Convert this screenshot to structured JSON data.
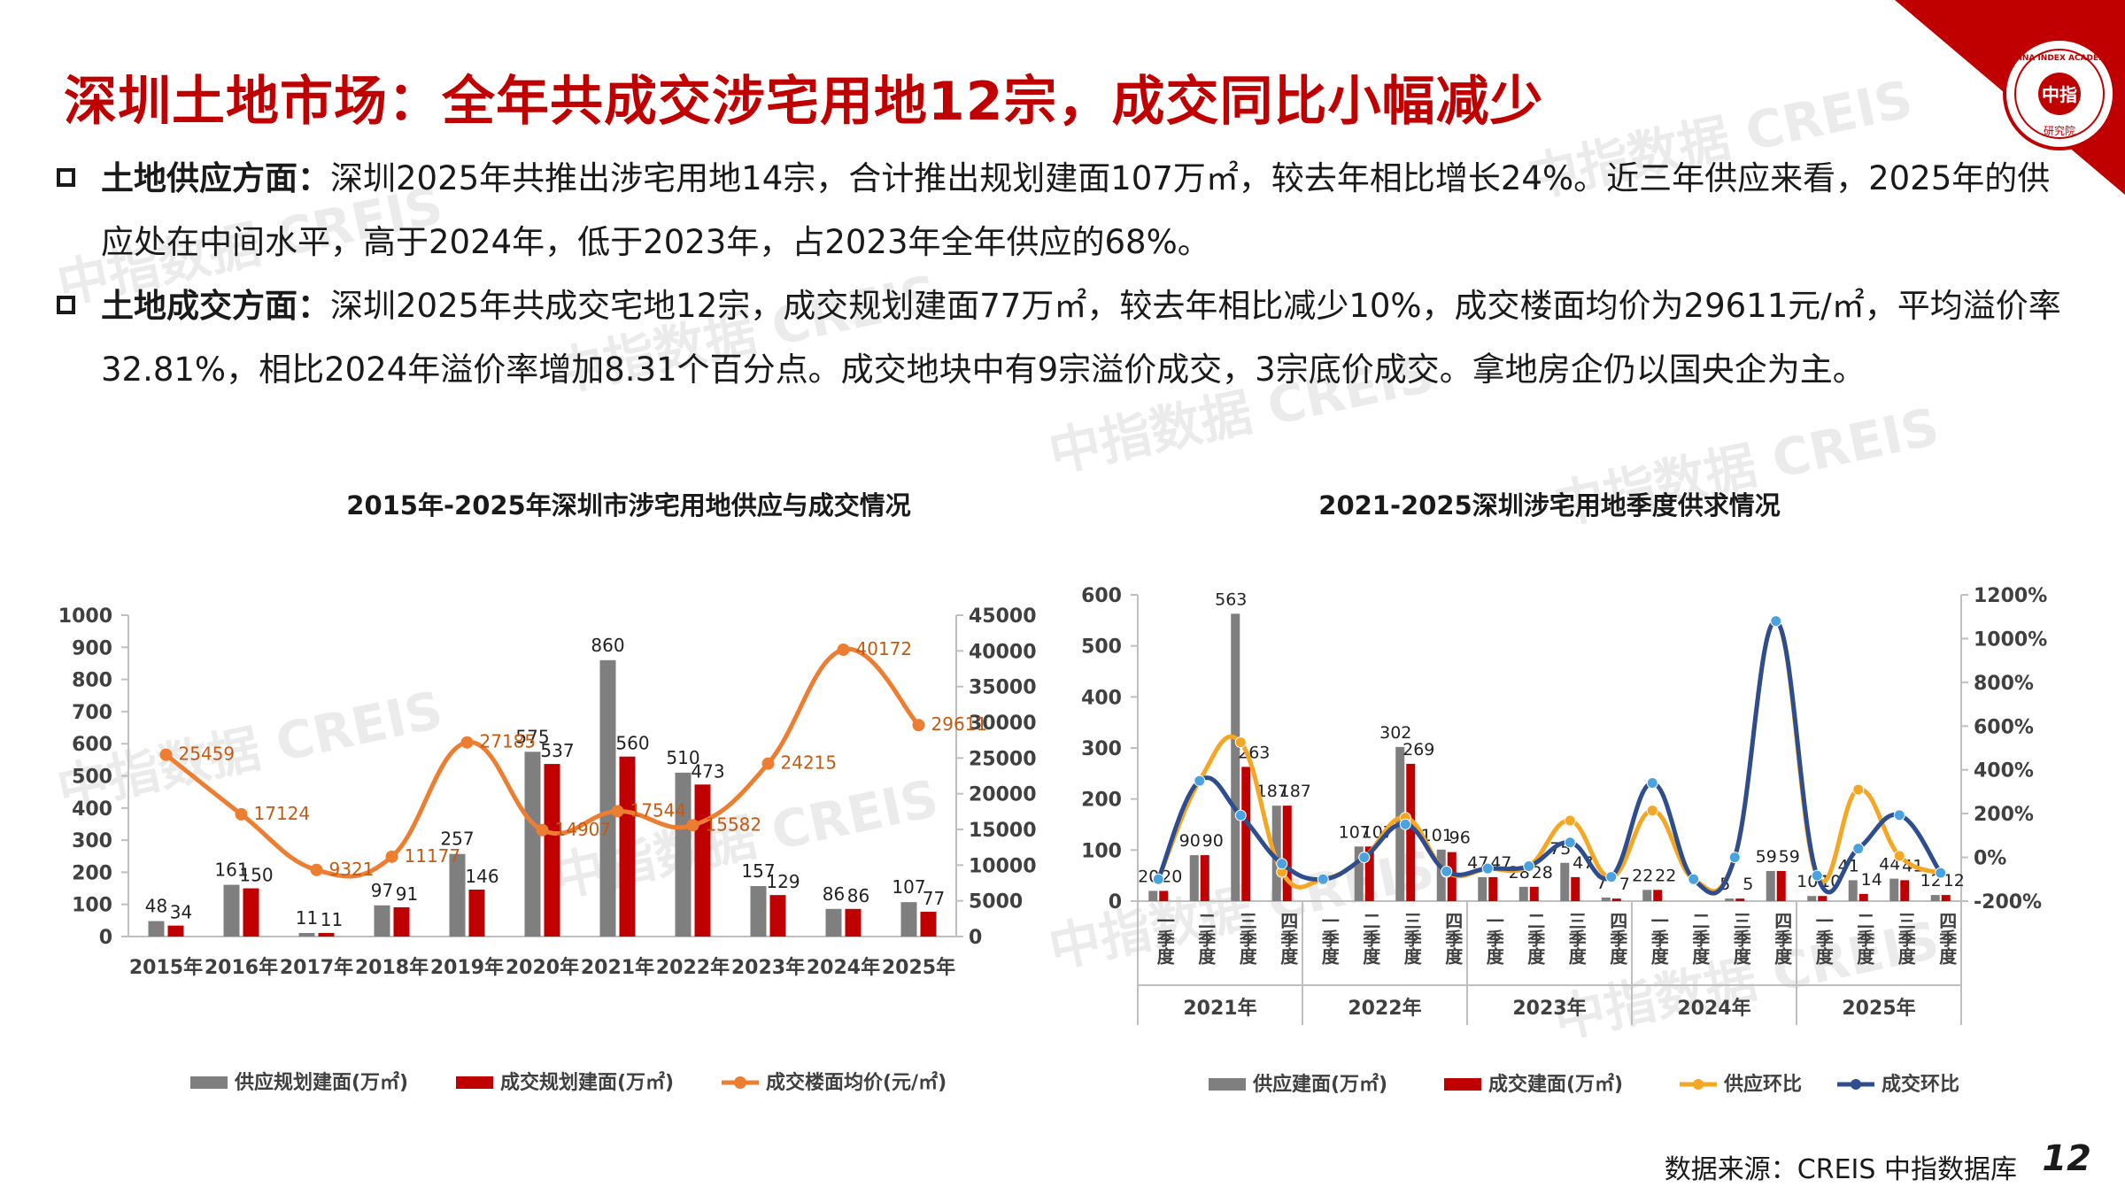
{
  "slide": {
    "title": "深圳土地市场：全年共成交涉宅用地12宗，成交同比小幅减少",
    "logo_text_top": "CHINA INDEX ACADEMY",
    "logo_text_center": "中指",
    "logo_text_bottom": "研究院",
    "bullets": [
      {
        "head": "土地供应方面：",
        "body": "深圳2025年共推出涉宅用地14宗，合计推出规划建面107万㎡，较去年相比增长24%。近三年供应来看，2025年的供应处在中间水平，高于2024年，低于2023年，占2023年全年供应的68%。"
      },
      {
        "head": "土地成交方面：",
        "body": "深圳2025年共成交宅地12宗，成交规划建面77万㎡，较去年相比减少10%，成交楼面均价为29611元/㎡，平均溢价率32.81%，相比2024年溢价率增加8.31个百分点。成交地块中有9宗溢价成交，3宗底价成交。拿地房企仍以国央企为主。"
      }
    ],
    "watermark": "中指数据 CREIS",
    "watermark_small": "中指数据",
    "source": "数据来源：CREIS 中指数据库",
    "page_number": "12"
  },
  "chart_data": [
    {
      "type": "bar",
      "title": "2015年-2025年深圳市涉宅用地供应与成交情况",
      "categories": [
        "2015年",
        "2016年",
        "2017年",
        "2018年",
        "2019年",
        "2020年",
        "2021年",
        "2022年",
        "2023年",
        "2024年",
        "2025年"
      ],
      "series": [
        {
          "name": "供应规划建面(万㎡)",
          "kind": "bar",
          "axis": "left",
          "color": "#7f7f7f",
          "values": [
            48,
            161,
            11,
            97,
            257,
            575,
            860,
            510,
            157,
            86,
            107
          ]
        },
        {
          "name": "成交规划建面(万㎡)",
          "kind": "bar",
          "axis": "left",
          "color": "#c00000",
          "values": [
            34,
            150,
            11,
            91,
            146,
            537,
            560,
            473,
            129,
            86,
            77
          ]
        },
        {
          "name": "成交楼面均价(元/㎡)",
          "kind": "line",
          "axis": "right",
          "color": "#ed7d31",
          "values": [
            25459,
            17124,
            9321,
            11177,
            27185,
            14907,
            17544,
            15582,
            24215,
            40172,
            29611
          ]
        }
      ],
      "ylim_left": [
        0,
        1000
      ],
      "yticks_left": [
        0,
        100,
        200,
        300,
        400,
        500,
        600,
        700,
        800,
        900,
        1000
      ],
      "ylim_right": [
        0,
        45000
      ],
      "yticks_right": [
        0,
        5000,
        10000,
        15000,
        20000,
        25000,
        30000,
        35000,
        40000,
        45000
      ],
      "legend": "bottom"
    },
    {
      "type": "bar",
      "title": "2021-2025深圳涉宅用地季度供求情况",
      "groups": [
        "2021年",
        "2022年",
        "2023年",
        "2024年",
        "2025年"
      ],
      "quarters": [
        "一季度",
        "二季度",
        "三季度",
        "四季度"
      ],
      "series": [
        {
          "name": "供应建面(万㎡)",
          "kind": "bar",
          "axis": "left",
          "color": "#7f7f7f",
          "values": [
            20,
            90,
            563,
            187,
            0,
            107,
            302,
            101,
            47,
            28,
            75,
            7,
            22,
            0,
            5,
            59,
            10,
            41,
            44,
            12
          ]
        },
        {
          "name": "成交建面(万㎡)",
          "kind": "bar",
          "axis": "left",
          "color": "#c00000",
          "values": [
            20,
            90,
            263,
            187,
            0,
            107,
            269,
            96,
            47,
            28,
            47,
            5,
            22,
            0,
            5,
            59,
            10,
            14,
            41,
            12
          ]
        },
        {
          "name": "供应环比",
          "kind": "line",
          "axis": "right",
          "color": "#f5a623",
          "values": [
            -100,
            350,
            526,
            -67,
            -100,
            0,
            182,
            -67,
            -53,
            -40,
            168,
            -91,
            214,
            -100,
            0,
            1080,
            -83,
            310,
            7,
            -73
          ]
        },
        {
          "name": "成交环比",
          "kind": "line",
          "axis": "right",
          "color": "#2e4d8f",
          "values": [
            -100,
            350,
            192,
            -29,
            -100,
            0,
            151,
            -64,
            -51,
            -40,
            68,
            -89,
            340,
            -100,
            0,
            1080,
            -83,
            40,
            193,
            -71
          ]
        }
      ],
      "bar_labels": [
        [
          "20",
          "20"
        ],
        [
          "90",
          "90"
        ],
        [
          "563",
          "263"
        ],
        [
          "187",
          "187"
        ],
        [
          "",
          ""
        ],
        [
          "107",
          "107"
        ],
        [
          "302",
          "269"
        ],
        [
          "101",
          "96"
        ],
        [
          "47",
          "47"
        ],
        [
          "28",
          "28"
        ],
        [
          "75",
          "47"
        ],
        [
          "7",
          "7"
        ],
        [
          "22",
          "22"
        ],
        [
          "",
          ""
        ],
        [
          "5",
          "5"
        ],
        [
          "59",
          "59"
        ],
        [
          "10",
          "10"
        ],
        [
          "41",
          "14"
        ],
        [
          "44",
          "41"
        ],
        [
          "12",
          "12"
        ]
      ],
      "ylim_left": [
        0,
        600
      ],
      "yticks_left": [
        0,
        100,
        200,
        300,
        400,
        500,
        600
      ],
      "ylim_right": [
        -200,
        1200
      ],
      "yticks_right": [
        "-200%",
        "0%",
        "200%",
        "400%",
        "600%",
        "800%",
        "1000%",
        "1200%"
      ],
      "legend": "bottom"
    }
  ]
}
